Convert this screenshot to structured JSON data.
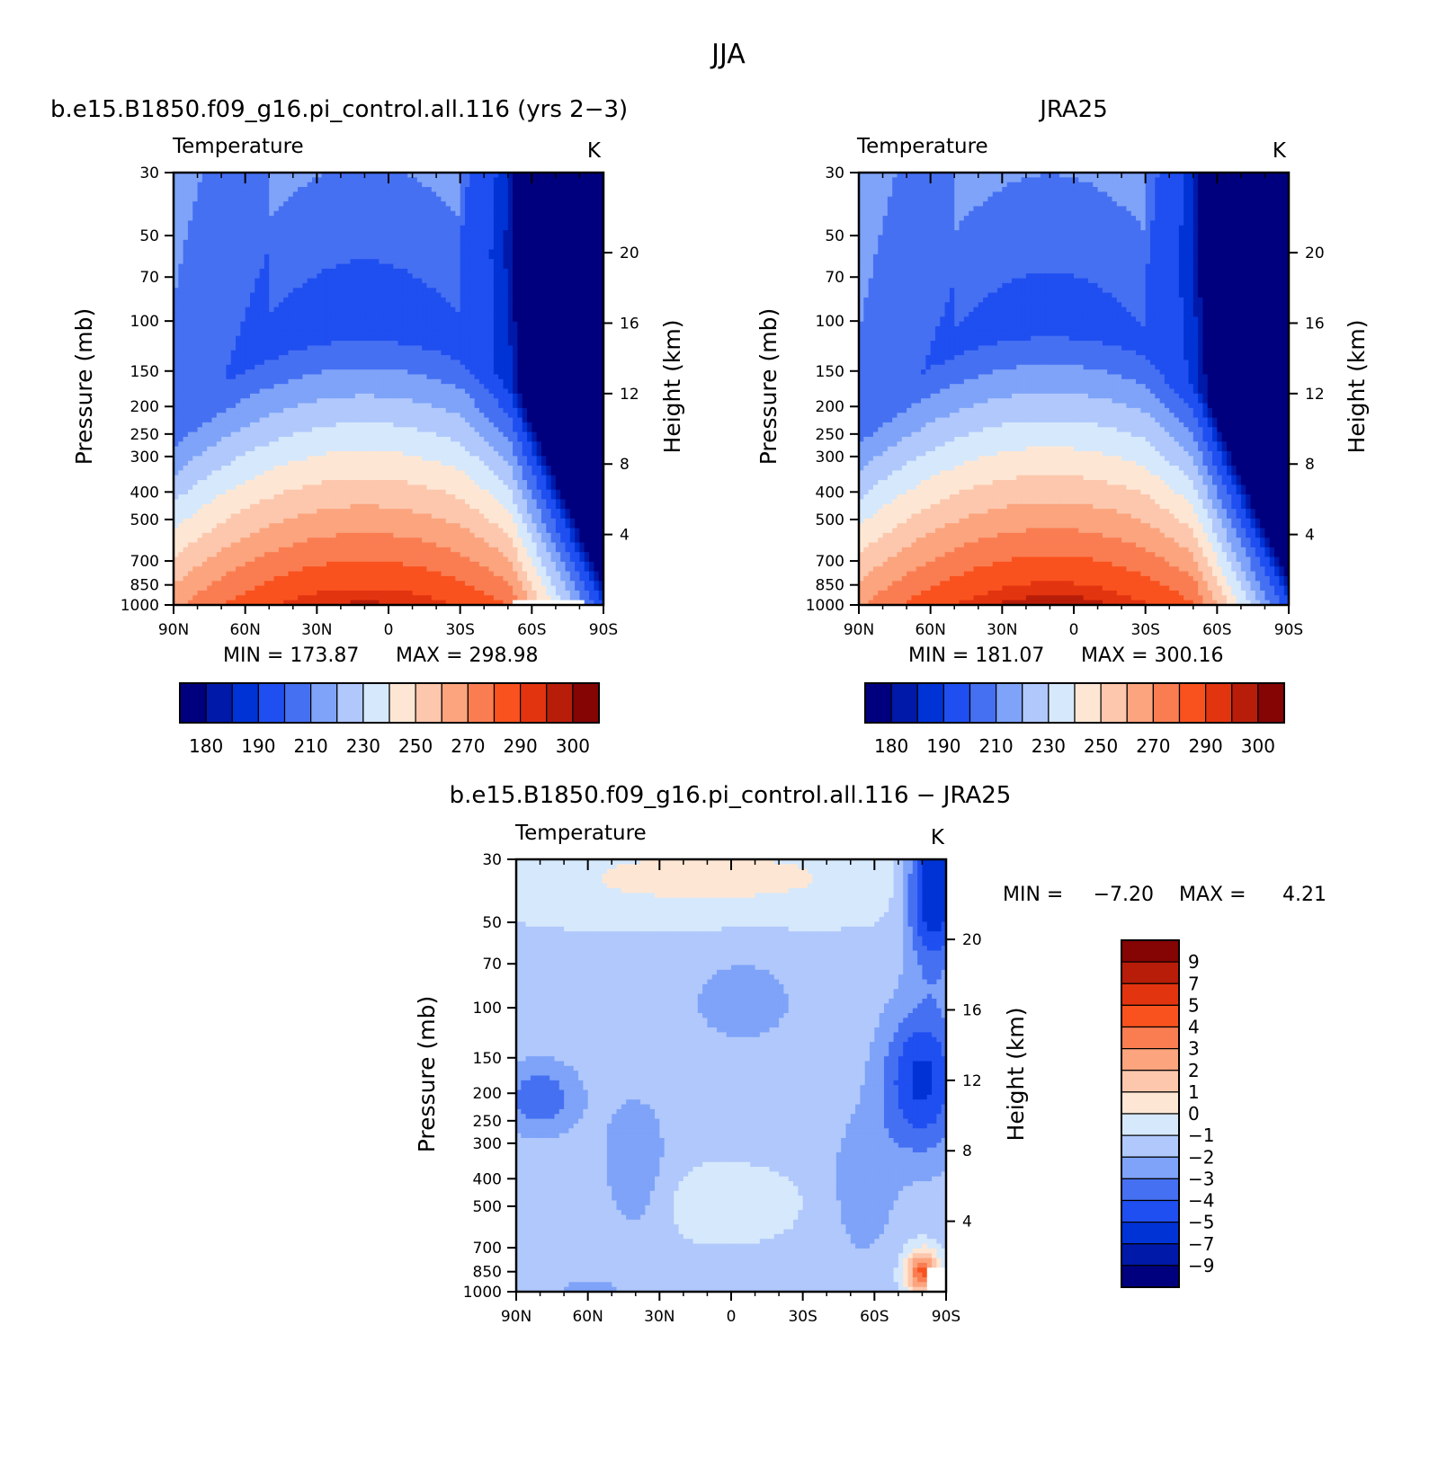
{
  "figure": {
    "title": "JJA",
    "colors": {
      "temperature_levels": [
        "#00007f",
        "#0019a8",
        "#0033d6",
        "#1f4ff0",
        "#4670f2",
        "#7ea3f8",
        "#b0c8fb",
        "#d6e8fc",
        "#fde7d4",
        "#fcc7ad",
        "#fba47e",
        "#fa7d52",
        "#f9521e",
        "#e33410",
        "#b81d09",
        "#850404"
      ],
      "difference_levels": [
        "#00007f",
        "#0019a8",
        "#0033d6",
        "#1f4ff0",
        "#4670f2",
        "#7ea3f8",
        "#b0c8fb",
        "#d6e8fc",
        "#fde7d4",
        "#fcc7ad",
        "#fba47e",
        "#fa7d52",
        "#f9521e",
        "#e33410",
        "#b81d09",
        "#850404"
      ]
    }
  },
  "chart_data": [
    {
      "type": "heatmap",
      "title": "b.e15.B1850.f09_g16.pi_control.all.116 (yrs 2−3)",
      "left_string": "Temperature",
      "right_string": "K",
      "ylabel": "Pressure (mb)",
      "ylabel_right": "Height (km)",
      "x_ticks": [
        "90N",
        "60N",
        "30N",
        "0",
        "30S",
        "60S",
        "90S"
      ],
      "x_range": [
        90,
        -90
      ],
      "y_ticks": [
        30,
        50,
        70,
        100,
        150,
        200,
        250,
        300,
        400,
        500,
        700,
        850,
        1000
      ],
      "y_range": [
        1000,
        30
      ],
      "y_scale": "log",
      "y_right_ticks": [
        4,
        8,
        12,
        16,
        20
      ],
      "min_label": "MIN = 173.87",
      "max_label": "MAX = 298.98",
      "min": 173.87,
      "max": 298.98,
      "colorbar_labels": [
        "180",
        "190",
        "210",
        "230",
        "250",
        "270",
        "290",
        "300"
      ],
      "colorbar_levels": [
        180,
        185,
        190,
        200,
        210,
        220,
        230,
        240,
        250,
        260,
        270,
        280,
        290,
        295,
        300
      ]
    },
    {
      "type": "heatmap",
      "title": "JRA25",
      "left_string": "Temperature",
      "right_string": "K",
      "ylabel": "Pressure (mb)",
      "ylabel_right": "Height (km)",
      "x_ticks": [
        "90N",
        "60N",
        "30N",
        "0",
        "30S",
        "60S",
        "90S"
      ],
      "x_range": [
        90,
        -90
      ],
      "y_ticks": [
        30,
        50,
        70,
        100,
        150,
        200,
        250,
        300,
        400,
        500,
        700,
        850,
        1000
      ],
      "y_range": [
        1000,
        30
      ],
      "y_scale": "log",
      "y_right_ticks": [
        4,
        8,
        12,
        16,
        20
      ],
      "min_label": "MIN = 181.07",
      "max_label": "MAX = 300.16",
      "min": 181.07,
      "max": 300.16,
      "colorbar_labels": [
        "180",
        "190",
        "210",
        "230",
        "250",
        "270",
        "290",
        "300"
      ],
      "colorbar_levels": [
        180,
        185,
        190,
        200,
        210,
        220,
        230,
        240,
        250,
        260,
        270,
        280,
        290,
        295,
        300
      ]
    },
    {
      "type": "heatmap",
      "title": "b.e15.B1850.f09_g16.pi_control.all.116 − JRA25",
      "left_string": "Temperature",
      "right_string": "K",
      "ylabel": "Pressure (mb)",
      "ylabel_right": "Height (km)",
      "x_ticks": [
        "90N",
        "60N",
        "30N",
        "0",
        "30S",
        "60S",
        "90S"
      ],
      "x_range": [
        90,
        -90
      ],
      "y_ticks": [
        30,
        50,
        70,
        100,
        150,
        200,
        250,
        300,
        400,
        500,
        700,
        850,
        1000
      ],
      "y_range": [
        1000,
        30
      ],
      "y_scale": "log",
      "y_right_ticks": [
        4,
        8,
        12,
        16,
        20
      ],
      "min_label": "MIN =",
      "min_value": "−7.20",
      "max_label": "MAX =",
      "max_value": "4.21",
      "min": -7.2,
      "max": 4.21,
      "colorbar_labels": [
        "9",
        "7",
        "5",
        "4",
        "3",
        "2",
        "1",
        "0",
        "−1",
        "−2",
        "−3",
        "−4",
        "−5",
        "−7",
        "−9"
      ],
      "colorbar_levels": [
        9,
        7,
        5,
        4,
        3,
        2,
        1,
        0,
        -1,
        -2,
        -3,
        -4,
        -5,
        -7,
        -9
      ]
    }
  ]
}
